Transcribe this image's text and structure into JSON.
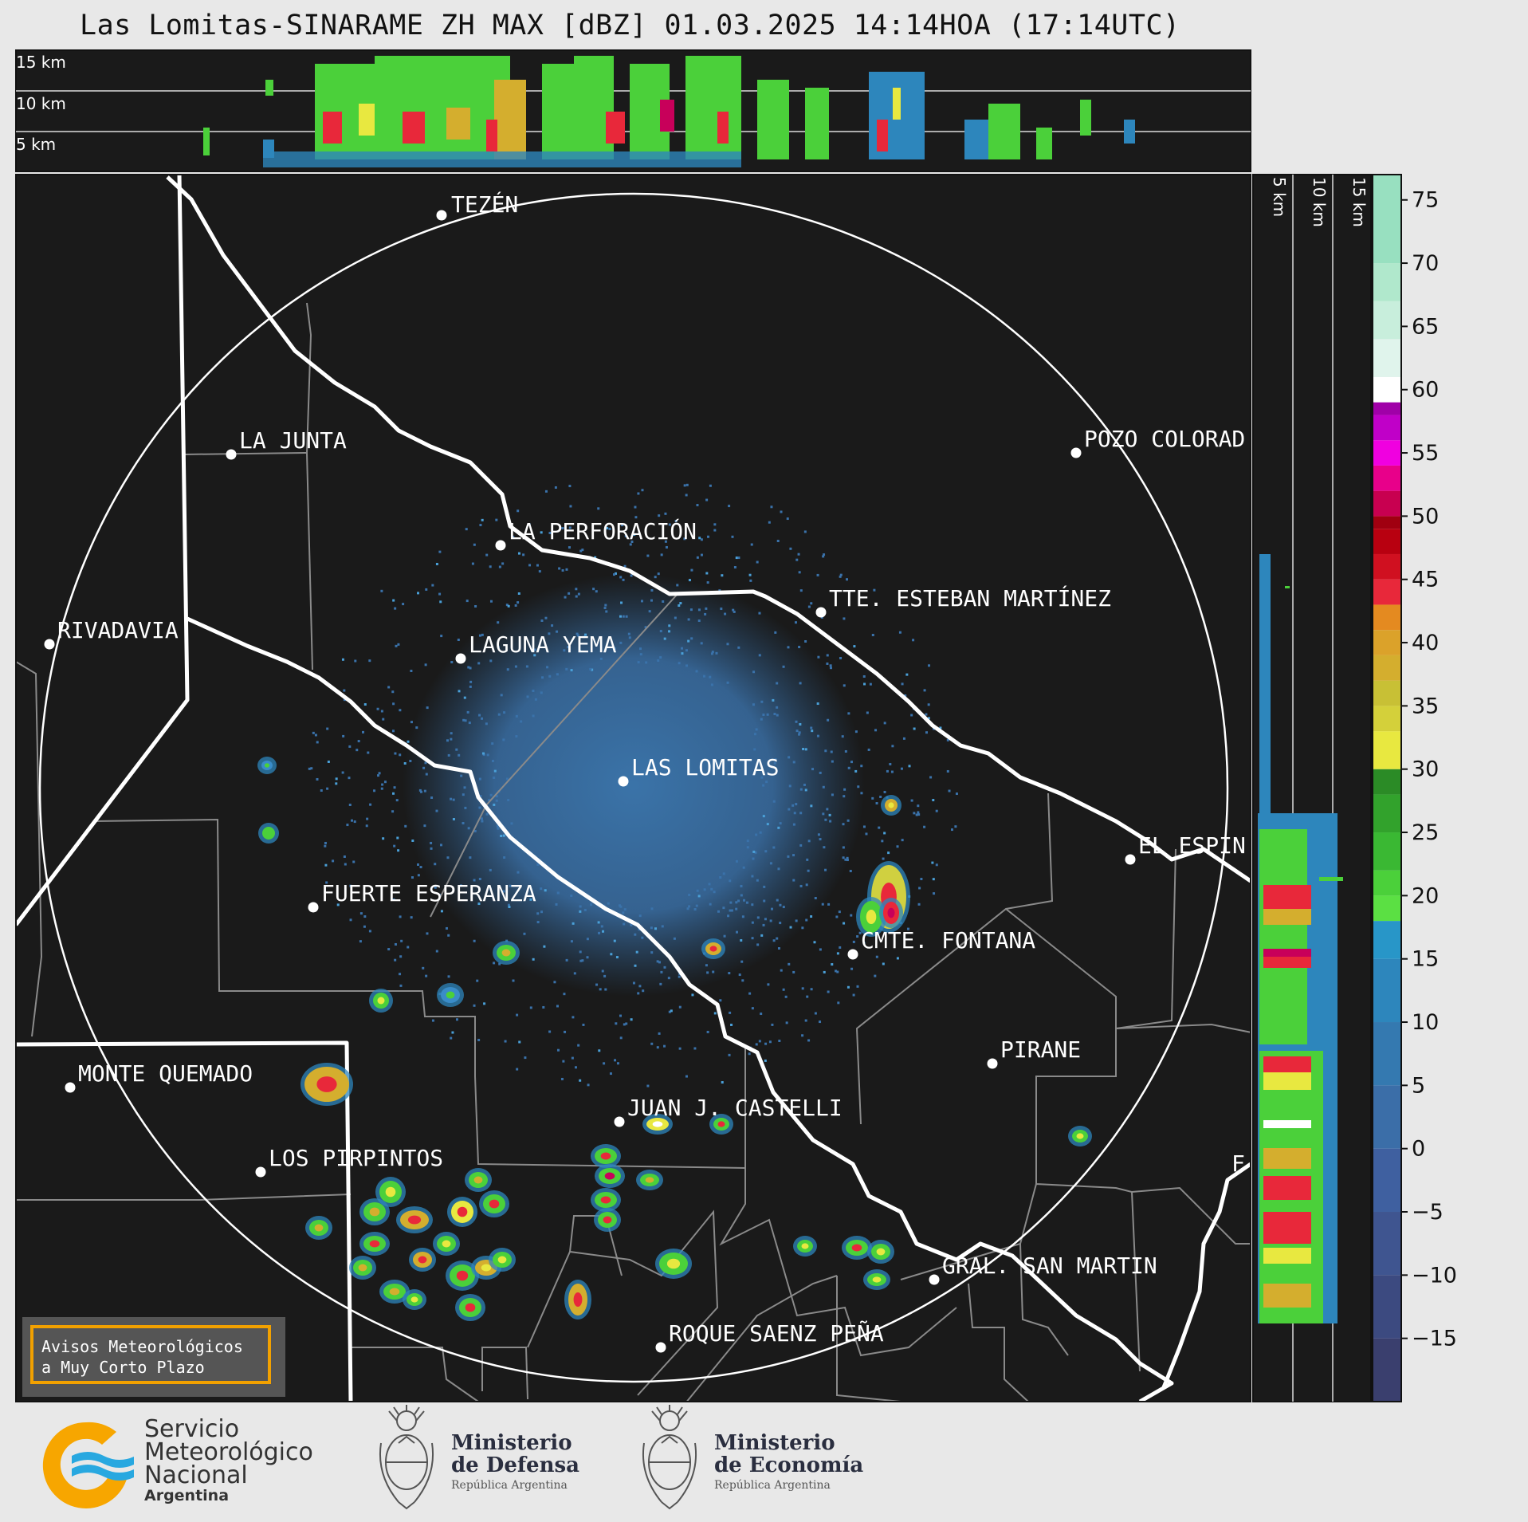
{
  "title": "Las Lomitas-SINARAME ZH MAX [dBZ] 01.03.2025 14:14HOA (17:14UTC)",
  "top_panel": {
    "altitudes": [
      "15 km",
      "10 km",
      "5 km"
    ]
  },
  "side_panel": {
    "altitudes": [
      "5 km",
      "10 km",
      "15 km"
    ]
  },
  "colorbar": {
    "unit": "dBZ",
    "ticks": [
      "75",
      "70",
      "65",
      "60",
      "55",
      "50",
      "45",
      "40",
      "35",
      "30",
      "25",
      "20",
      "15",
      "10",
      "5",
      "0",
      "−5",
      "−10",
      "−15"
    ],
    "range": [
      -20,
      77
    ]
  },
  "cities": [
    {
      "name": "TEZÉN"
    },
    {
      "name": "LA JUNTA"
    },
    {
      "name": "POZO COLORAD"
    },
    {
      "name": "LA PERFORACIÓN"
    },
    {
      "name": "TTE. ESTEBAN MARTÍNEZ"
    },
    {
      "name": "RIVADAVIA"
    },
    {
      "name": "LAGUNA YEMA"
    },
    {
      "name": "LAS LOMITAS"
    },
    {
      "name": "EL ESPIN"
    },
    {
      "name": "FUERTE ESPERANZA"
    },
    {
      "name": "CMTE. FONTANA"
    },
    {
      "name": "PIRANE"
    },
    {
      "name": "MONTE QUEMADO"
    },
    {
      "name": "JUAN J. CASTELLI"
    },
    {
      "name": "LOS PIRPINTOS"
    },
    {
      "name": "GRAL. SAN MARTIN"
    },
    {
      "name": "ROQUE SAENZ PEÑA"
    },
    {
      "name": "F"
    }
  ],
  "warning_box": {
    "line1": "Avisos Meteorológicos",
    "line2": "a Muy Corto Plazo"
  },
  "logos": {
    "smn": {
      "line1": "Servicio",
      "line2": "Meteorológico",
      "line3": "Nacional",
      "line4": "Argentina"
    },
    "defensa": {
      "line1": "Ministerio",
      "line2": "de Defensa",
      "line3": "República Argentina"
    },
    "economia": {
      "line1": "Ministerio",
      "line2": "de Economía",
      "line3": "República Argentina"
    }
  },
  "colors": {
    "background": "#1a1a1a",
    "frame": "#e8e8e8",
    "border": "#ffffff",
    "warning_border": "#f2a100",
    "smn_orange": "#f7a600",
    "smn_blue": "#28a8e0"
  }
}
